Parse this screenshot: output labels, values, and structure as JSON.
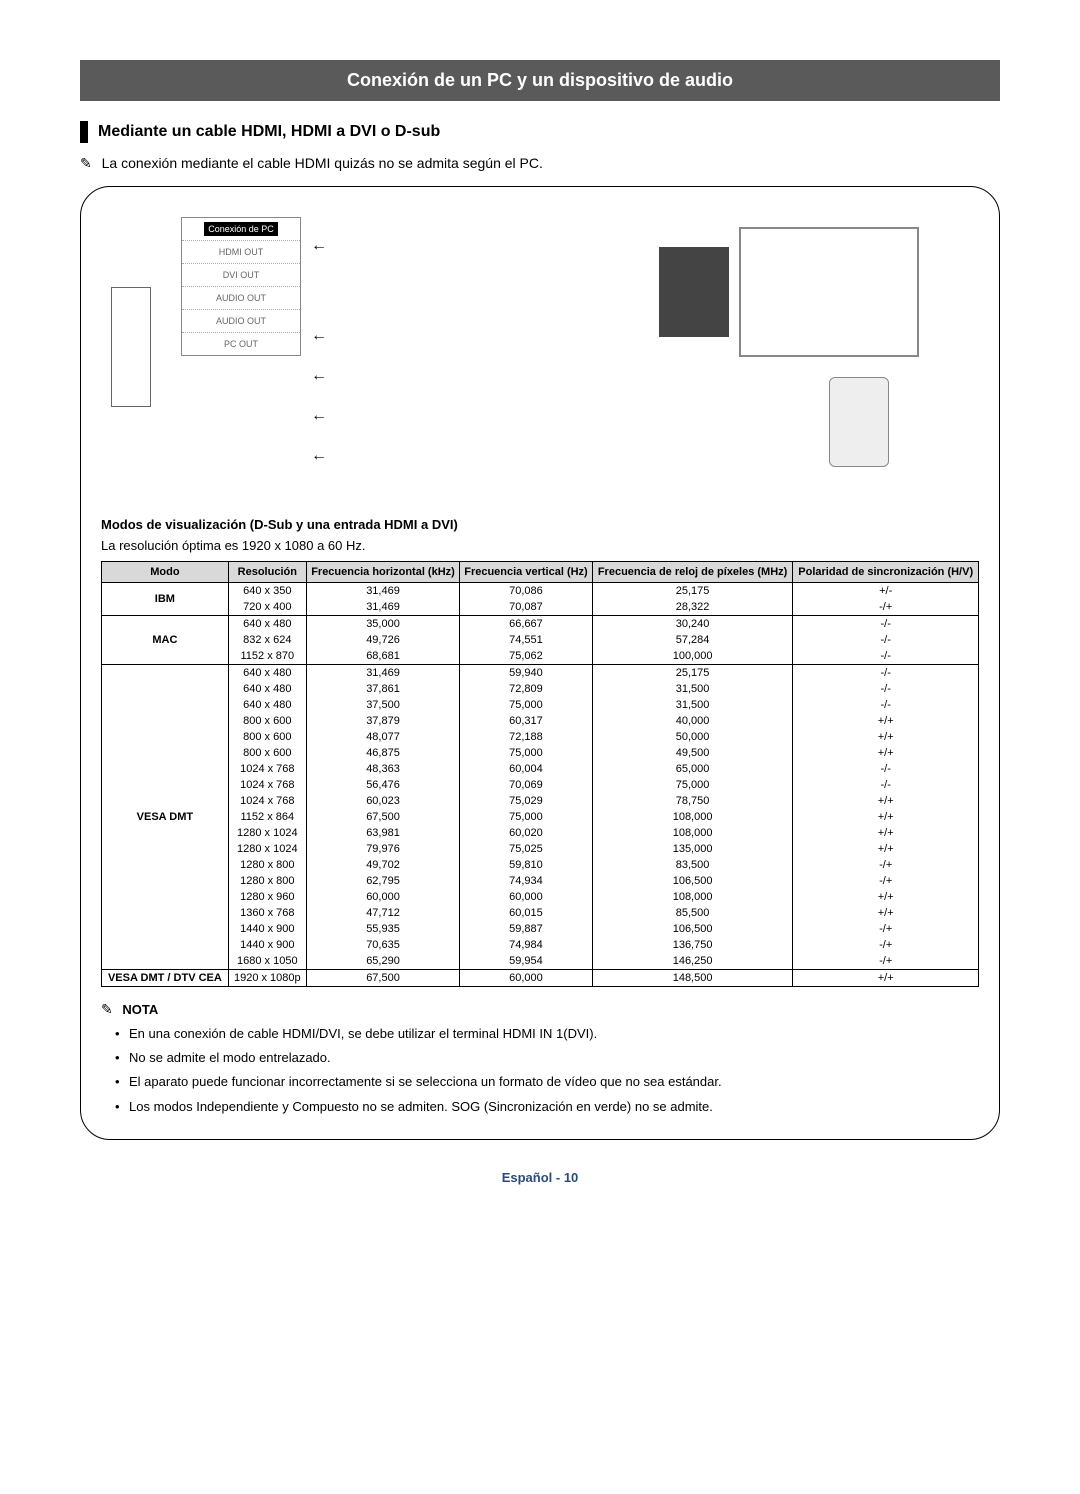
{
  "banner_title": "Conexión de un PC y un dispositivo de audio",
  "section_title": "Mediante un cable HDMI, HDMI a DVI o D-sub",
  "hdmi_note": "La conexión mediante el cable HDMI quizás no se admita según el PC.",
  "diagram_labels": {
    "pc_connection": "Conexión de PC",
    "hdmi_out": "HDMI OUT",
    "dvi_out": "DVI OUT",
    "audio_out1": "AUDIO OUT",
    "audio_out2": "AUDIO OUT",
    "pc_out": "PC OUT"
  },
  "table_heading": "Modos de visualización (D-Sub y una entrada HDMI a DVI)",
  "optimal_text": "La resolución óptima es 1920 x 1080 a 60 Hz.",
  "table": {
    "columns": [
      "Modo",
      "Resolución",
      "Frecuencia horizontal (kHz)",
      "Frecuencia vertical (Hz)",
      "Frecuencia de reloj de píxeles (MHz)",
      "Polaridad de sincronización (H/V)"
    ],
    "groups": [
      {
        "mode": "IBM",
        "rows": [
          [
            "640 x 350",
            "31,469",
            "70,086",
            "25,175",
            "+/-"
          ],
          [
            "720 x 400",
            "31,469",
            "70,087",
            "28,322",
            "-/+"
          ]
        ]
      },
      {
        "mode": "MAC",
        "rows": [
          [
            "640 x 480",
            "35,000",
            "66,667",
            "30,240",
            "-/-"
          ],
          [
            "832 x 624",
            "49,726",
            "74,551",
            "57,284",
            "-/-"
          ],
          [
            "1152 x 870",
            "68,681",
            "75,062",
            "100,000",
            "-/-"
          ]
        ]
      },
      {
        "mode": "VESA DMT",
        "rows": [
          [
            "640 x 480",
            "31,469",
            "59,940",
            "25,175",
            "-/-"
          ],
          [
            "640 x 480",
            "37,861",
            "72,809",
            "31,500",
            "-/-"
          ],
          [
            "640 x 480",
            "37,500",
            "75,000",
            "31,500",
            "-/-"
          ],
          [
            "800 x 600",
            "37,879",
            "60,317",
            "40,000",
            "+/+"
          ],
          [
            "800 x 600",
            "48,077",
            "72,188",
            "50,000",
            "+/+"
          ],
          [
            "800 x 600",
            "46,875",
            "75,000",
            "49,500",
            "+/+"
          ],
          [
            "1024 x 768",
            "48,363",
            "60,004",
            "65,000",
            "-/-"
          ],
          [
            "1024 x 768",
            "56,476",
            "70,069",
            "75,000",
            "-/-"
          ],
          [
            "1024 x 768",
            "60,023",
            "75,029",
            "78,750",
            "+/+"
          ],
          [
            "1152 x 864",
            "67,500",
            "75,000",
            "108,000",
            "+/+"
          ],
          [
            "1280 x 1024",
            "63,981",
            "60,020",
            "108,000",
            "+/+"
          ],
          [
            "1280 x 1024",
            "79,976",
            "75,025",
            "135,000",
            "+/+"
          ],
          [
            "1280 x 800",
            "49,702",
            "59,810",
            "83,500",
            "-/+"
          ],
          [
            "1280 x 800",
            "62,795",
            "74,934",
            "106,500",
            "-/+"
          ],
          [
            "1280 x 960",
            "60,000",
            "60,000",
            "108,000",
            "+/+"
          ],
          [
            "1360 x 768",
            "47,712",
            "60,015",
            "85,500",
            "+/+"
          ],
          [
            "1440 x 900",
            "55,935",
            "59,887",
            "106,500",
            "-/+"
          ],
          [
            "1440 x 900",
            "70,635",
            "74,984",
            "136,750",
            "-/+"
          ],
          [
            "1680 x 1050",
            "65,290",
            "59,954",
            "146,250",
            "-/+"
          ]
        ]
      },
      {
        "mode": "VESA DMT / DTV CEA",
        "rows": [
          [
            "1920 x 1080p",
            "67,500",
            "60,000",
            "148,500",
            "+/+"
          ]
        ]
      }
    ]
  },
  "nota": {
    "title": "NOTA",
    "items": [
      "En una conexión de cable HDMI/DVI, se debe utilizar el terminal HDMI IN 1(DVI).",
      "No se admite el modo entrelazado.",
      "El aparato puede funcionar incorrectamente si se selecciona un formato de vídeo que no sea estándar.",
      "Los modos Independiente y Compuesto no se admiten. SOG (Sincronización en verde) no se admite."
    ]
  },
  "footer": "Español - 10",
  "colors": {
    "banner_bg": "#5a5a5a",
    "banner_fg": "#ffffff",
    "table_header_bg": "#d9d9d9",
    "footer_color": "#2a4b7c"
  }
}
